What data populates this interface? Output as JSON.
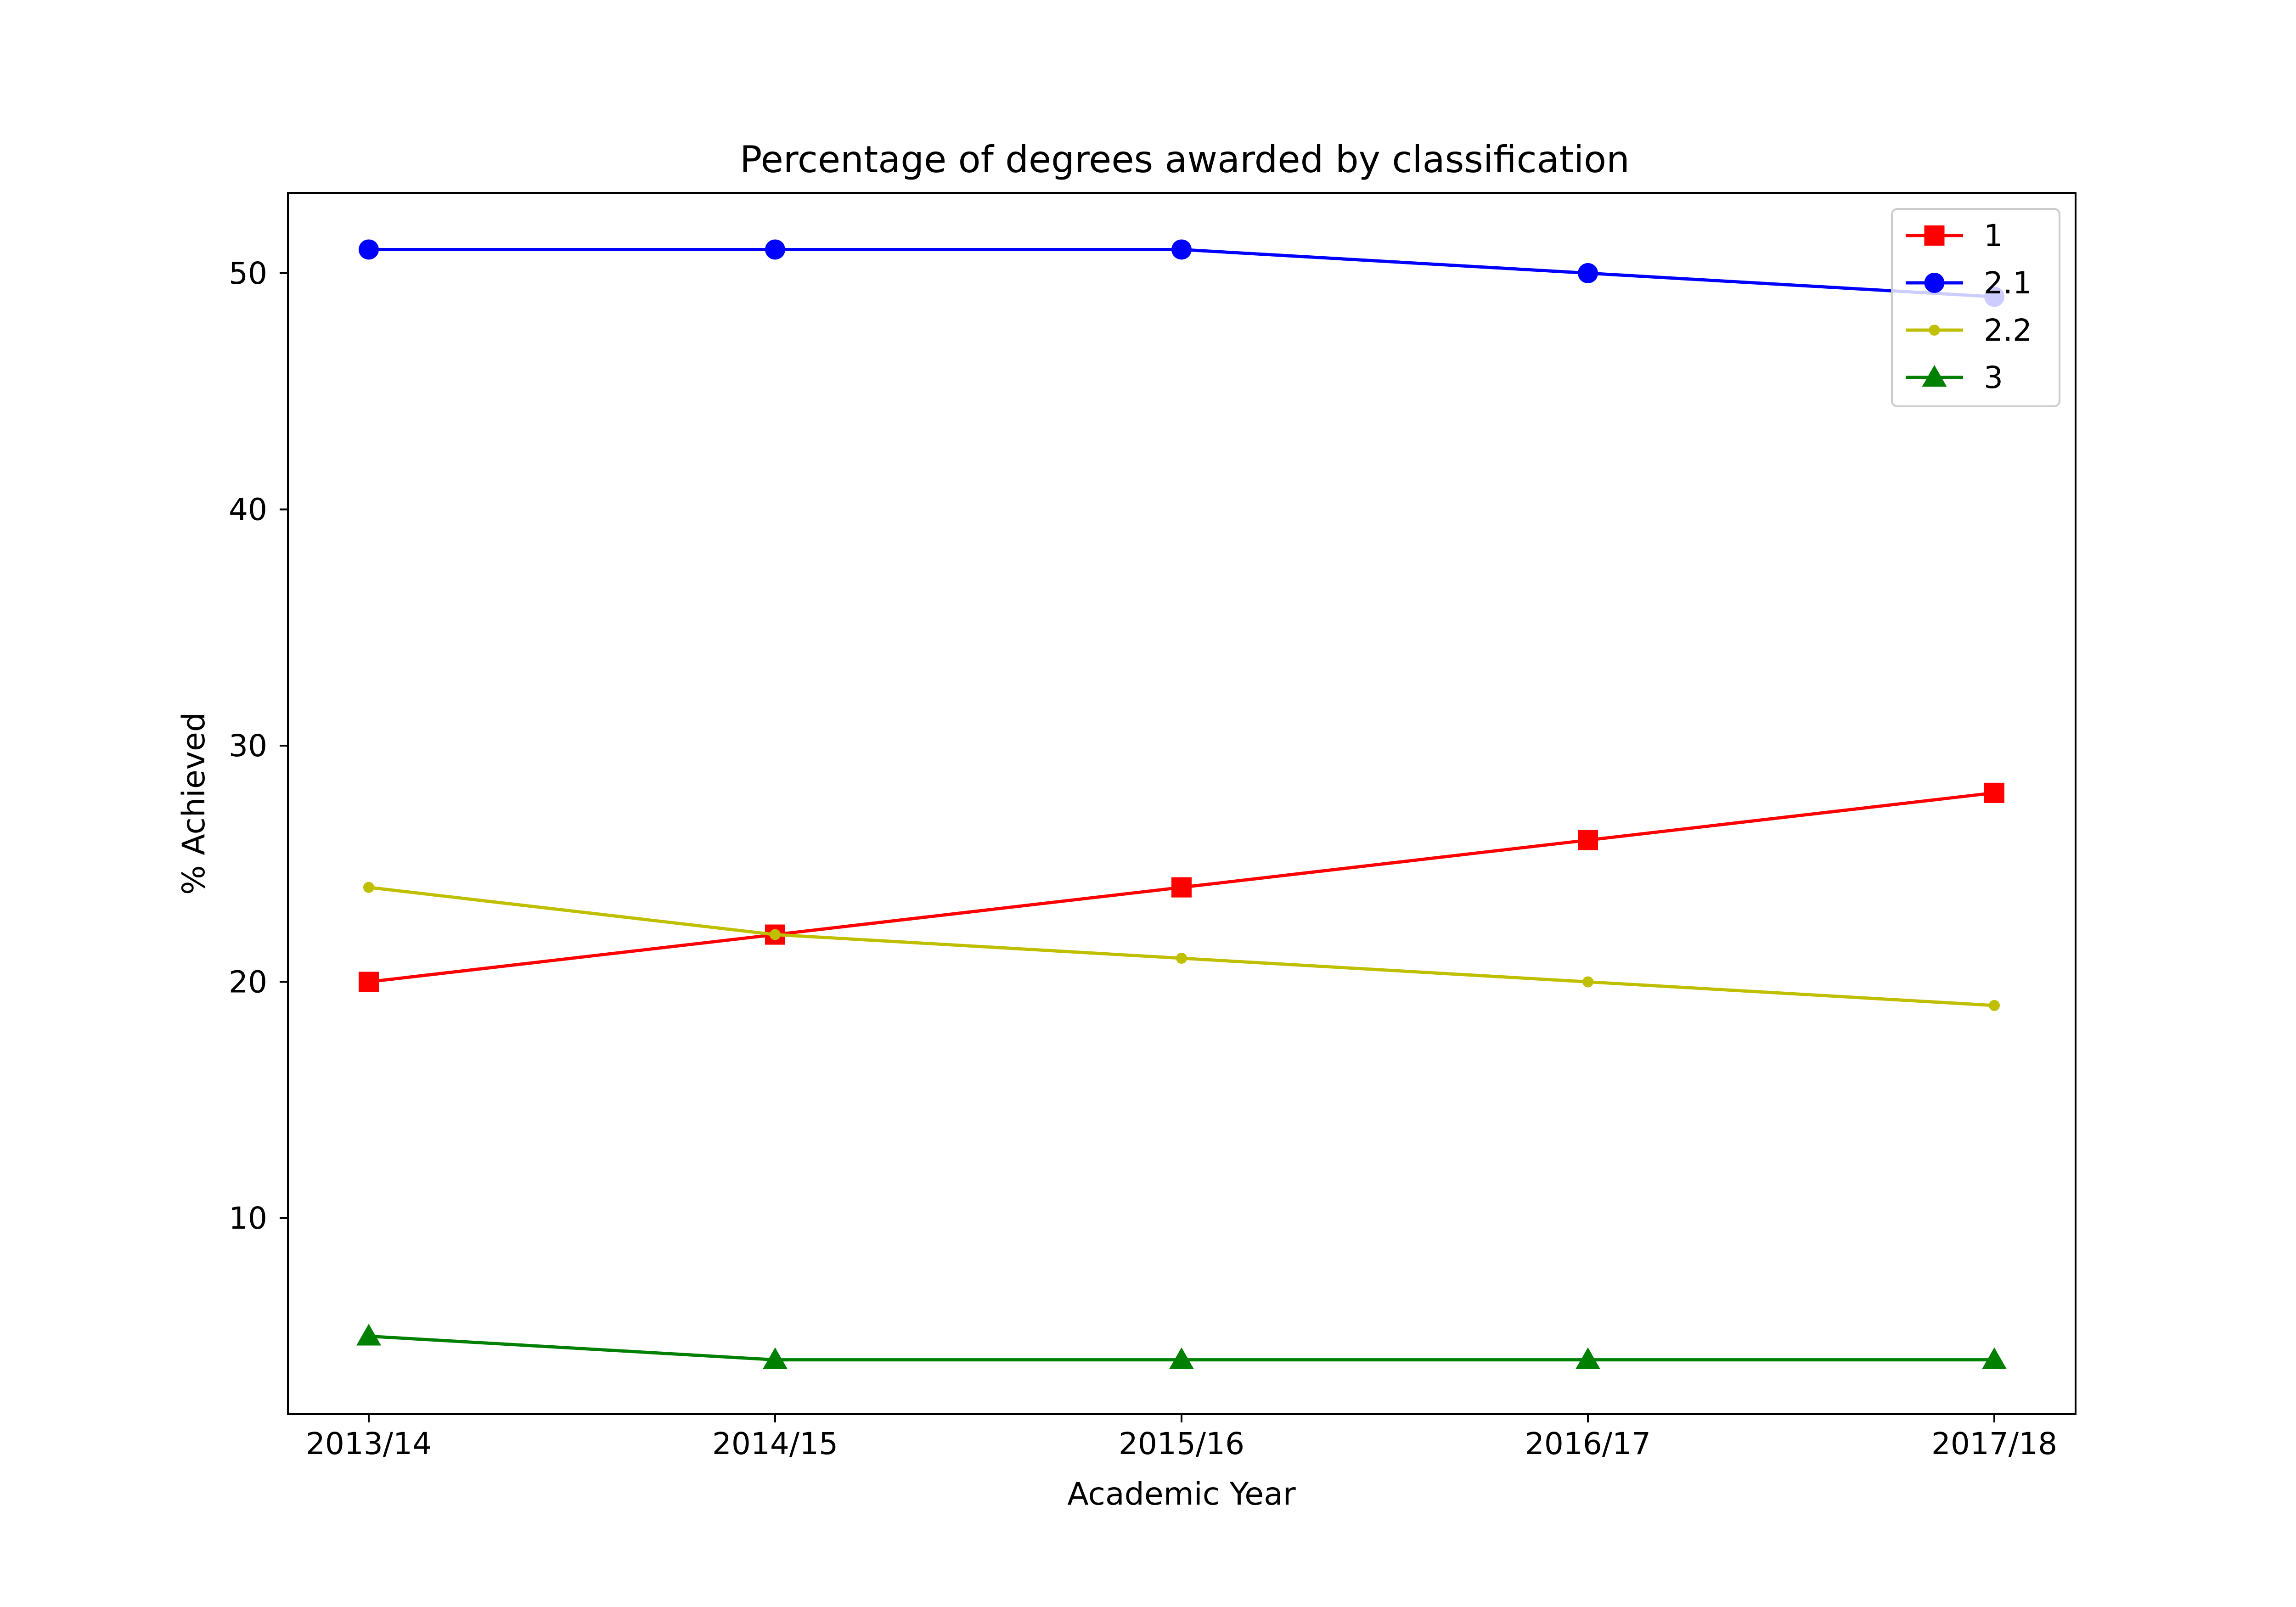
{
  "chart_data": {
    "type": "line",
    "title": "Percentage of degrees awarded by classification",
    "xlabel": "Academic Year",
    "ylabel": "% Achieved",
    "categories": [
      "2013/14",
      "2014/15",
      "2015/16",
      "2016/17",
      "2017/18"
    ],
    "yticks": [
      10,
      20,
      30,
      40,
      50
    ],
    "ylim": [
      1.7,
      53.4
    ],
    "grid": false,
    "legend_position": "top-right",
    "series": [
      {
        "name": "1",
        "values": [
          20,
          22,
          24,
          26,
          28
        ],
        "color": "#ff0000",
        "marker": "square"
      },
      {
        "name": "2.1",
        "values": [
          51,
          51,
          51,
          50,
          49
        ],
        "color": "#0000ff",
        "marker": "circle"
      },
      {
        "name": "2.2",
        "values": [
          24,
          22,
          21,
          20,
          19
        ],
        "color": "#bfbf00",
        "marker": "point"
      },
      {
        "name": "3",
        "values": [
          5,
          4,
          4,
          4,
          4
        ],
        "color": "#008000",
        "marker": "triangle"
      }
    ]
  }
}
